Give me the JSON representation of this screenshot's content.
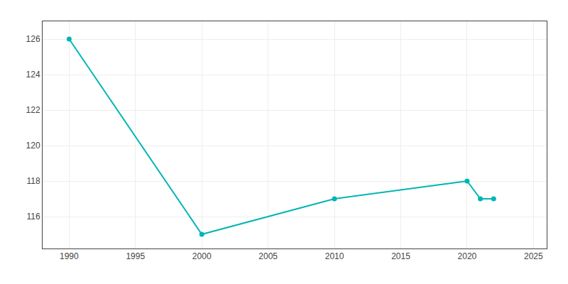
{
  "chart_data": {
    "type": "line",
    "x": [
      1990,
      2000,
      2010,
      2020,
      2021,
      2022
    ],
    "values": [
      126,
      115,
      117,
      118,
      117,
      117
    ],
    "color": "#00B5B5",
    "marker": "circle",
    "xlim": [
      1988,
      2026
    ],
    "ylim": [
      114.2,
      127.0
    ],
    "xticks": [
      1990,
      1995,
      2000,
      2005,
      2010,
      2015,
      2020,
      2025
    ],
    "yticks": [
      116,
      118,
      120,
      122,
      124,
      126
    ],
    "grid": true
  }
}
